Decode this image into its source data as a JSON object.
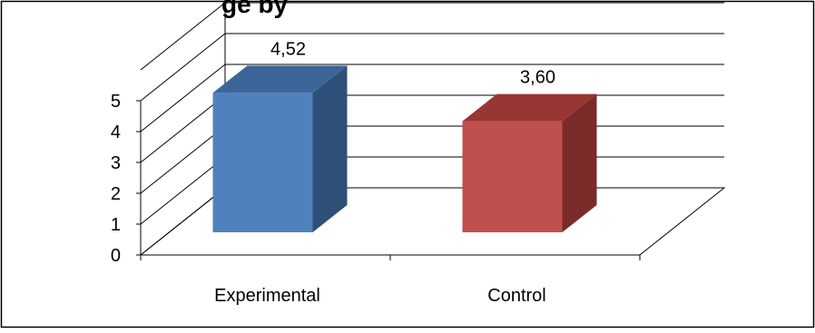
{
  "chart_data": {
    "type": "bar",
    "title": "",
    "title_fragment": "ge by",
    "categories": [
      "Experimental",
      "Control"
    ],
    "values": [
      4.52,
      3.6
    ],
    "data_labels": [
      "4,52",
      "3,60"
    ],
    "ylim": [
      0,
      5
    ],
    "y_ticks": [
      "0",
      "1",
      "2",
      "3",
      "4",
      "5"
    ],
    "xlabel": "",
    "ylabel": "",
    "grid": true,
    "style": "3d-column",
    "colors": {
      "Experimental": {
        "front": "#4F81BD",
        "side": "#2E5078",
        "top": "#3C669A"
      },
      "Control": {
        "front": "#C0504D",
        "side": "#7A2A28",
        "top": "#983633"
      }
    }
  }
}
